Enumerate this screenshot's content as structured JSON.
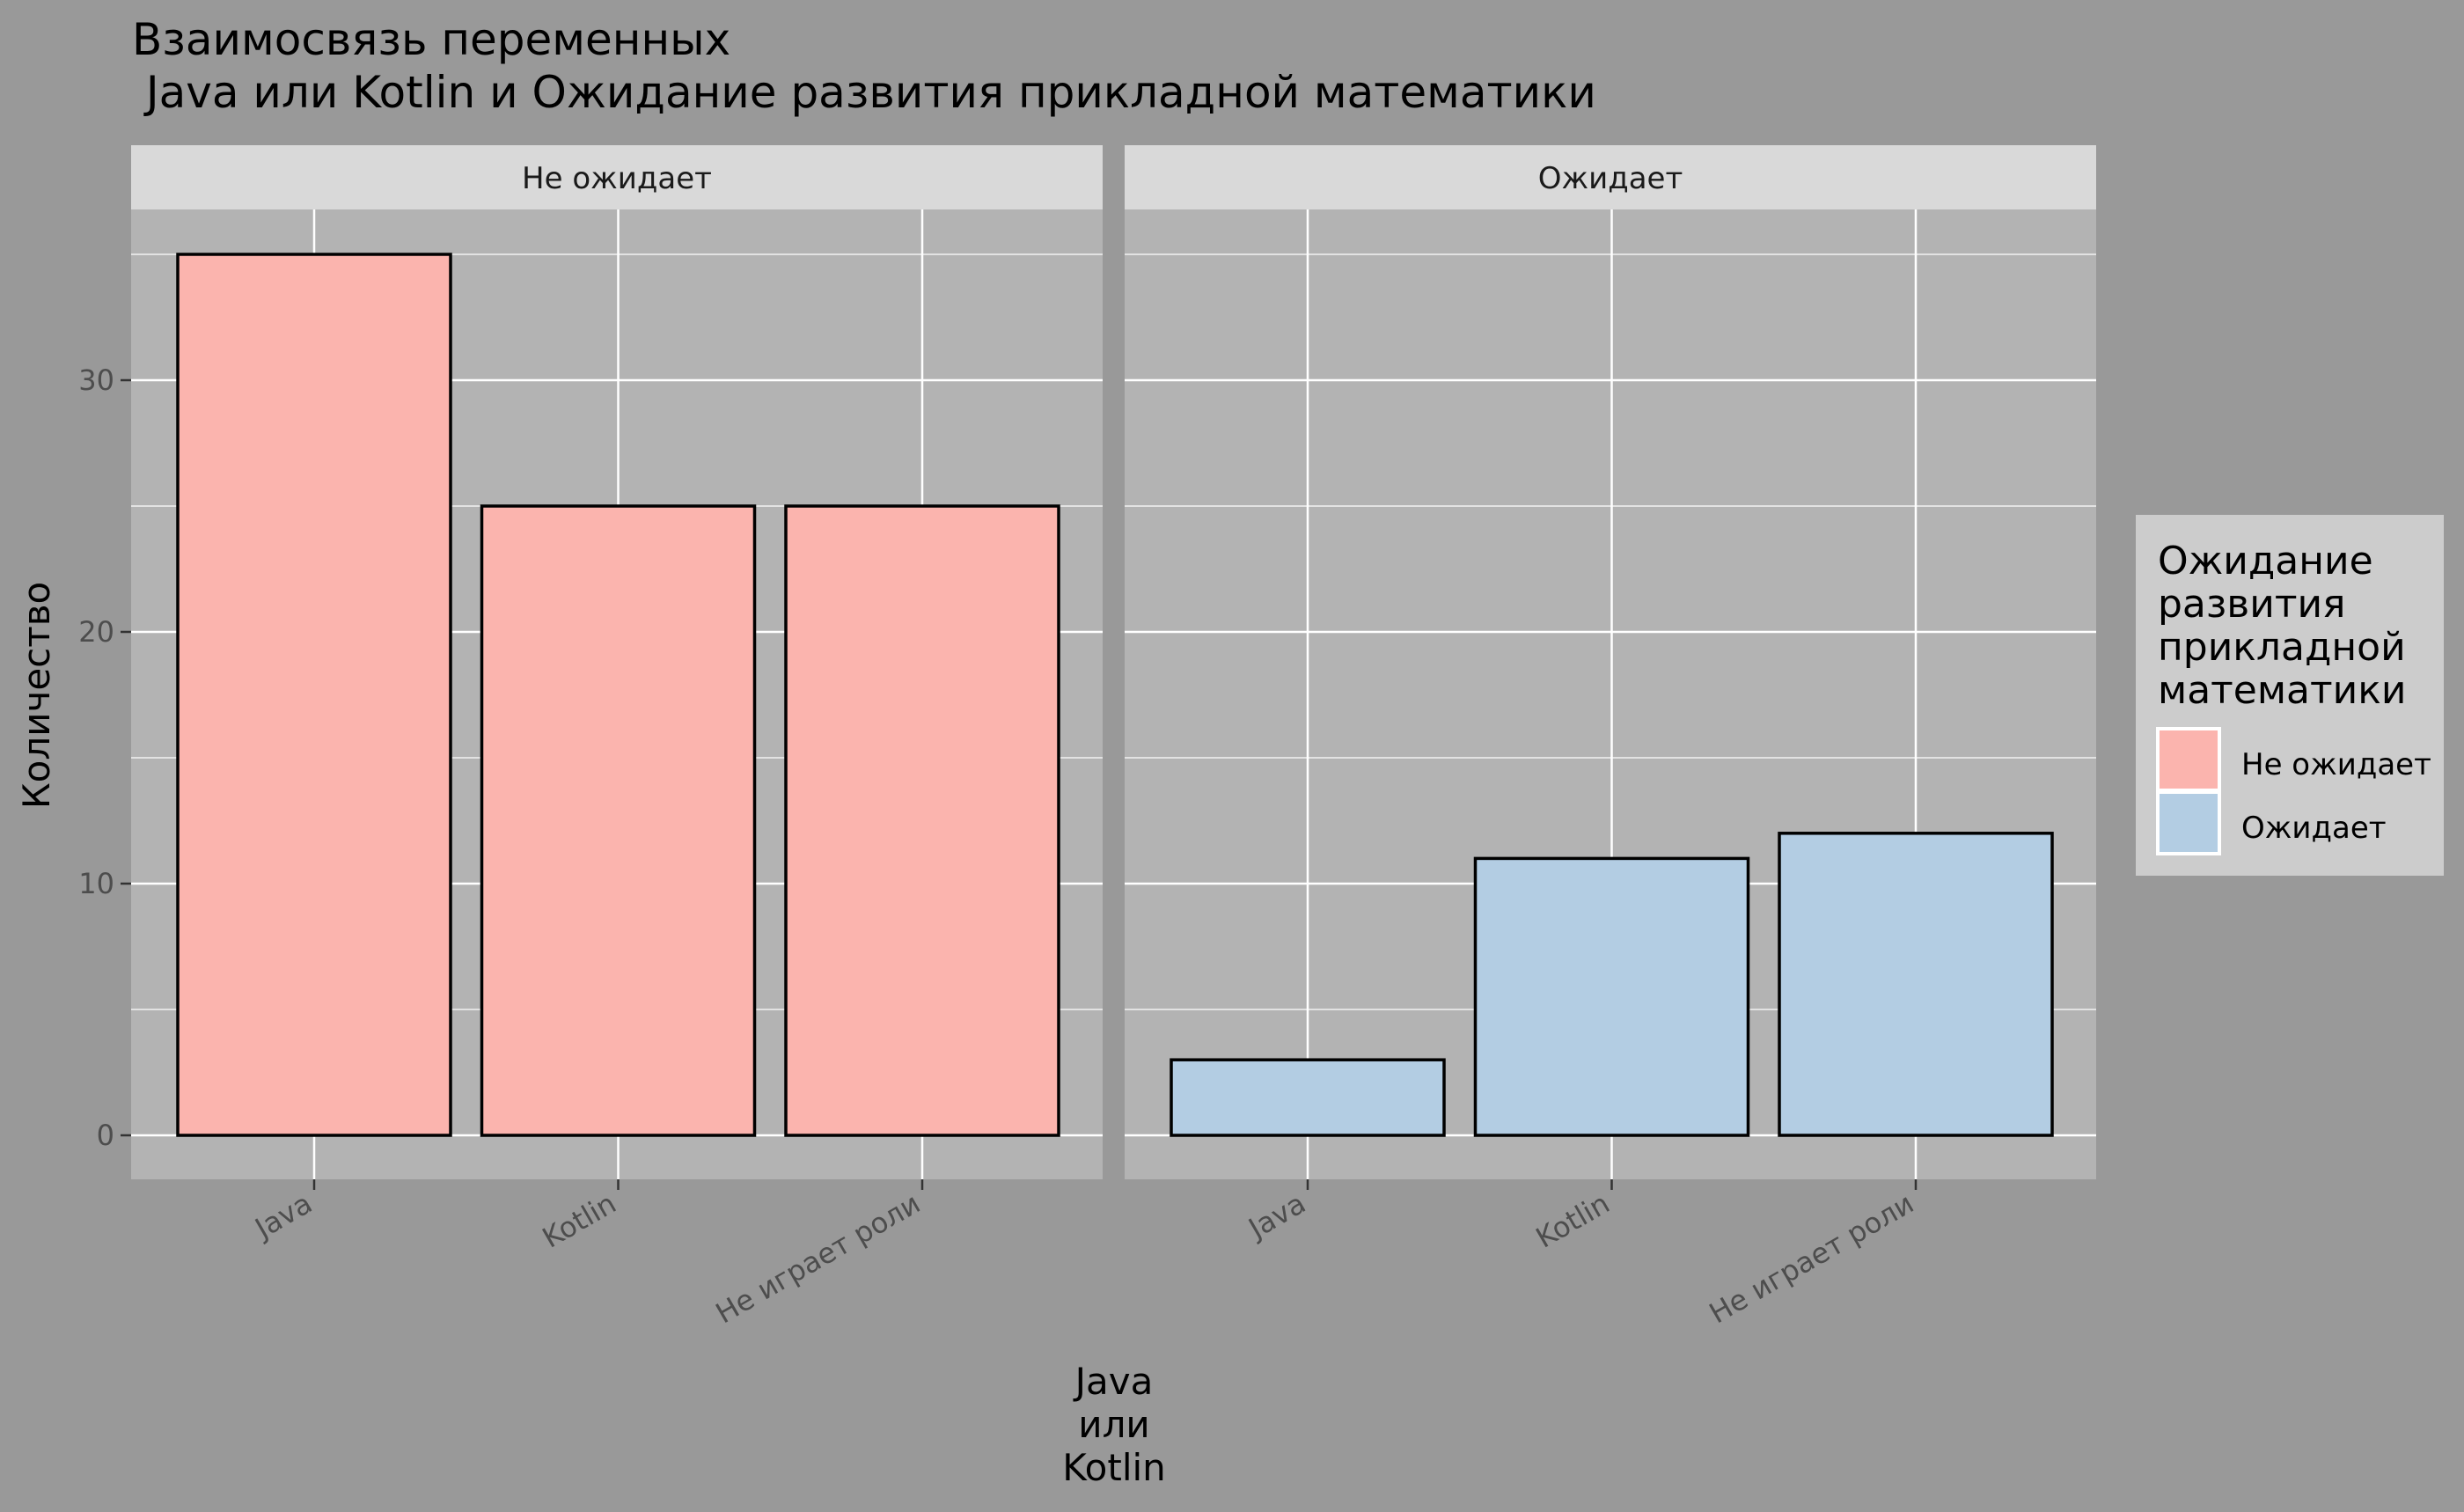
{
  "chart_data": {
    "type": "bar",
    "title_lines": [
      "Взаимосвязь переменных",
      " Java или Kotlin и Ожидание развития прикладной математики"
    ],
    "xlabel_lines": [
      "Java",
      "или",
      "Kotlin"
    ],
    "ylabel": "Количество",
    "categories": [
      "Java",
      "Kotlin",
      "Не играет роли"
    ],
    "ylim": [
      0,
      37
    ],
    "yticks": [
      0,
      10,
      20,
      30
    ],
    "grid": true,
    "legend_placement": "right",
    "legend": {
      "title_lines": [
        "Ожидание",
        "развития",
        "прикладной",
        "математики"
      ],
      "items": [
        {
          "label": "Не ожидает",
          "color": "#FBB4AE"
        },
        {
          "label": "Ожидает",
          "color": "#B3CDE3"
        }
      ]
    },
    "facets": [
      {
        "label": "Не ожидает",
        "color": "#FBB4AE",
        "values": [
          35,
          25,
          25
        ]
      },
      {
        "label": "Ожидает",
        "color": "#B3CDE3",
        "values": [
          3,
          11,
          12
        ]
      }
    ]
  }
}
